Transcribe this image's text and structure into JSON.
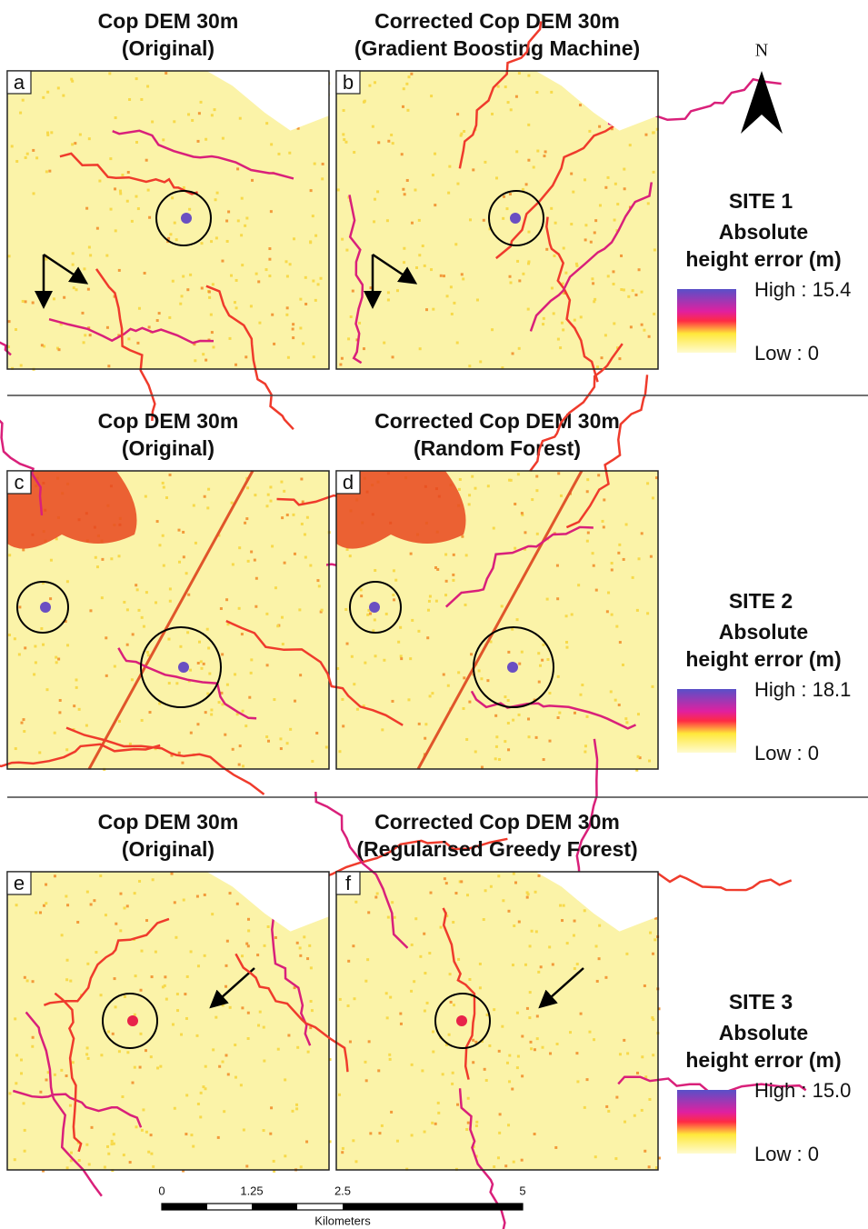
{
  "north": "N",
  "sites": [
    {
      "left": {
        "label": "a",
        "title": [
          "Cop DEM 30m",
          "(Original)"
        ]
      },
      "right": {
        "label": "b",
        "title": [
          "Corrected Cop DEM 30m",
          "(Gradient Boosting Machine)"
        ]
      },
      "legend": {
        "site": "SITE 1",
        "title": [
          "Absolute",
          "height error (m)"
        ],
        "high": "High : 15.4",
        "low": "Low : 0"
      }
    },
    {
      "left": {
        "label": "c",
        "title": [
          "Cop DEM 30m",
          "(Original)"
        ]
      },
      "right": {
        "label": "d",
        "title": [
          "Corrected Cop DEM 30m",
          "(Random Forest)"
        ]
      },
      "legend": {
        "site": "SITE 2",
        "title": [
          "Absolute",
          "height error (m)"
        ],
        "high": "High : 18.1",
        "low": "Low : 0"
      }
    },
    {
      "left": {
        "label": "e",
        "title": [
          "Cop DEM 30m",
          "(Original)"
        ]
      },
      "right": {
        "label": "f",
        "title": [
          "Corrected Cop DEM 30m",
          "(Regularised Greedy Forest)"
        ]
      },
      "legend": {
        "site": "SITE 3",
        "title": [
          "Absolute",
          "height error (m)"
        ],
        "high": "High : 15.0",
        "low": "Low : 0"
      }
    }
  ],
  "scale_bar": {
    "ticks": [
      "0",
      "1.25",
      "2.5",
      "5"
    ],
    "unit": "Kilometers"
  }
}
